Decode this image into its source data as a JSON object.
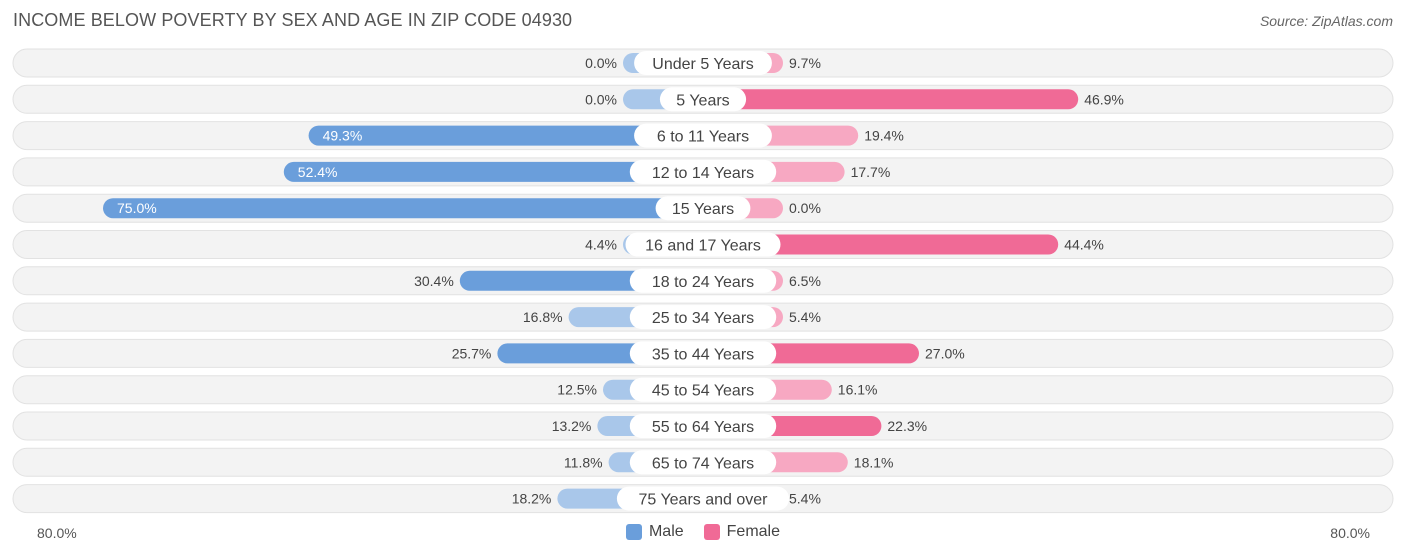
{
  "title": "INCOME BELOW POVERTY BY SEX AND AGE IN ZIP CODE 04930",
  "source": "Source: ZipAtlas.com",
  "colors": {
    "male_strong": "#6a9edb",
    "male_light": "#a9c7ea",
    "female_strong": "#f06a96",
    "female_light": "#f7a8c2",
    "track": "#f0f0f0"
  },
  "chart_data": {
    "type": "bar",
    "orientation": "horizontal-diverging",
    "title": "INCOME BELOW POVERTY BY SEX AND AGE IN ZIP CODE 04930",
    "categories": [
      "Under 5 Years",
      "5 Years",
      "6 to 11 Years",
      "12 to 14 Years",
      "15 Years",
      "16 and 17 Years",
      "18 to 24 Years",
      "25 to 34 Years",
      "35 to 44 Years",
      "45 to 54 Years",
      "55 to 64 Years",
      "65 to 74 Years",
      "75 Years and over"
    ],
    "series": [
      {
        "name": "Male",
        "values": [
          0.0,
          0.0,
          49.3,
          52.4,
          75.0,
          4.4,
          30.4,
          16.8,
          25.7,
          12.5,
          13.2,
          11.8,
          18.2
        ]
      },
      {
        "name": "Female",
        "values": [
          9.7,
          46.9,
          19.4,
          17.7,
          0.0,
          44.4,
          6.5,
          5.4,
          27.0,
          16.1,
          22.3,
          18.1,
          5.4
        ]
      }
    ],
    "value_labels": {
      "Male": [
        "0.0%",
        "0.0%",
        "49.3%",
        "52.4%",
        "75.0%",
        "4.4%",
        "30.4%",
        "16.8%",
        "25.7%",
        "12.5%",
        "13.2%",
        "11.8%",
        "18.2%"
      ],
      "Female": [
        "9.7%",
        "46.9%",
        "19.4%",
        "17.7%",
        "0.0%",
        "44.4%",
        "6.5%",
        "5.4%",
        "27.0%",
        "16.1%",
        "22.3%",
        "18.1%",
        "5.4%"
      ]
    },
    "xlim": [
      -80,
      80
    ],
    "axis_labels": {
      "left": "80.0%",
      "right": "80.0%"
    },
    "legend": [
      "Male",
      "Female"
    ],
    "legend_position": "bottom-center"
  }
}
